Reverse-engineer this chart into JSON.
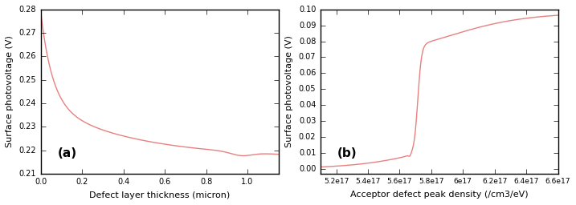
{
  "plot_a": {
    "label": "(a)",
    "xlabel": "Defect layer thickness (micron)",
    "ylabel": "Surface photovoltage (V)",
    "xlim": [
      0,
      1.15
    ],
    "ylim": [
      0.21,
      0.28
    ],
    "yticks": [
      0.21,
      0.22,
      0.23,
      0.24,
      0.25,
      0.26,
      0.27,
      0.28
    ],
    "xticks": [
      0.0,
      0.2,
      0.4,
      0.6,
      0.8,
      1.0
    ],
    "line_color": "#e88080"
  },
  "plot_b": {
    "label": "(b)",
    "xlabel": "Acceptor defect peak density (/cm3/eV)",
    "ylabel": "Surface photovoltage (V)",
    "xlim": [
      5.1e+17,
      6.6e+17
    ],
    "ylim": [
      -0.003,
      0.1
    ],
    "yticks": [
      0.0,
      0.01,
      0.02,
      0.03,
      0.04,
      0.05,
      0.06,
      0.07,
      0.08,
      0.09,
      0.1
    ],
    "xticks": [
      5.2e+17,
      5.4e+17,
      5.6e+17,
      5.8e+17,
      6e+17,
      6.2e+17,
      6.4e+17,
      6.6e+17
    ],
    "xticklabels": [
      "5.2e17",
      "5.4e17",
      "5.6e17",
      "5.8e17",
      "6e17",
      "6.2e17",
      "6.4e17",
      "6.6e17"
    ],
    "line_color": "#e88080"
  },
  "figsize": [
    7.17,
    2.56
  ],
  "dpi": 100
}
